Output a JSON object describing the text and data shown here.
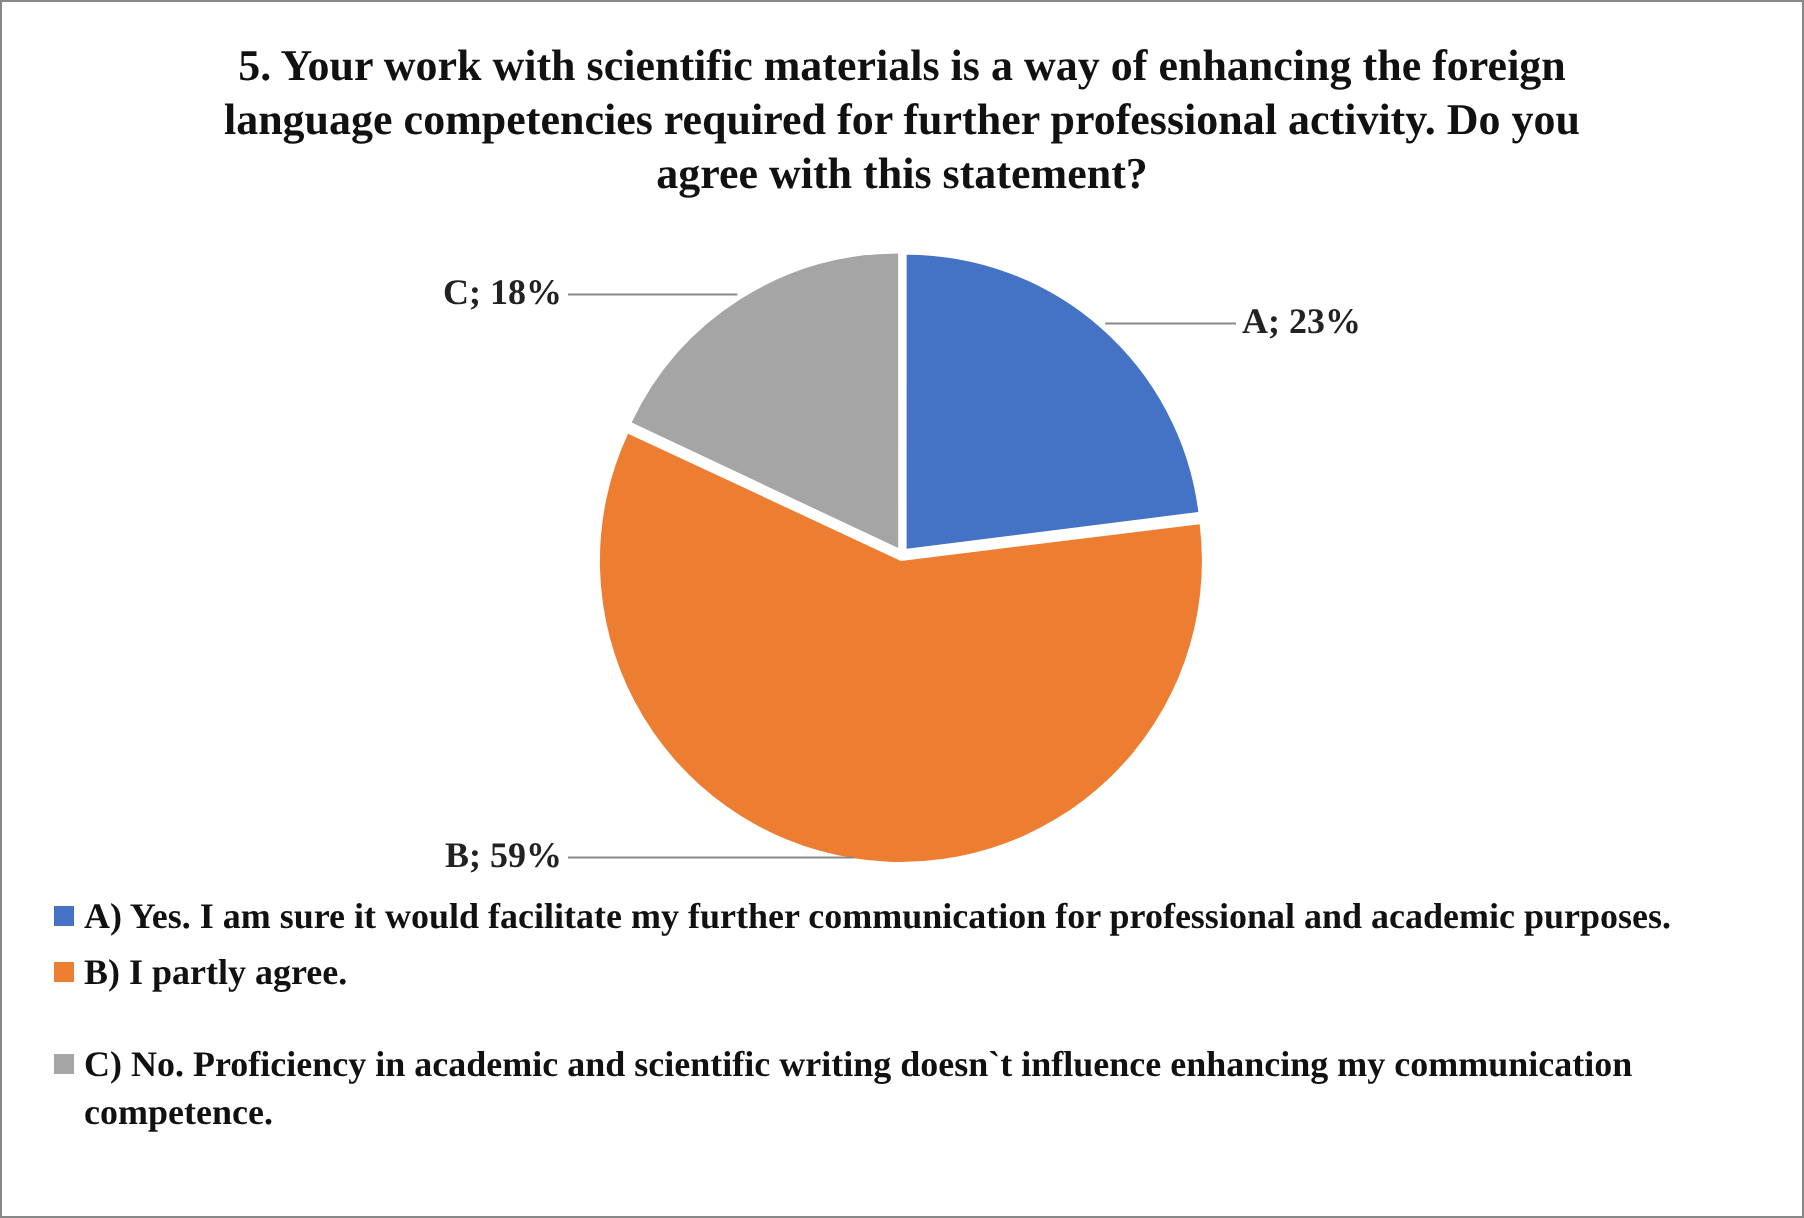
{
  "chart_data": {
    "type": "pie",
    "title": "5. Your work with scientific materials is a way of enhancing the foreign language competencies required for further professional activity. Do you agree with this statement?",
    "categories": [
      "A) Yes. I am sure it would facilitate my further communication for professional and academic purposes.",
      "B) I  partly agree.",
      "C) No. Proficiency in academic and scientific writing doesn`t influence enhancing my communication competence."
    ],
    "values": [
      23,
      59,
      18
    ],
    "colors": [
      "#4472c4",
      "#ed7d31",
      "#a5a5a5"
    ],
    "value_labels": [
      "A; 23%",
      "B; 59%",
      "C; 18%"
    ],
    "legend": "bottom"
  }
}
